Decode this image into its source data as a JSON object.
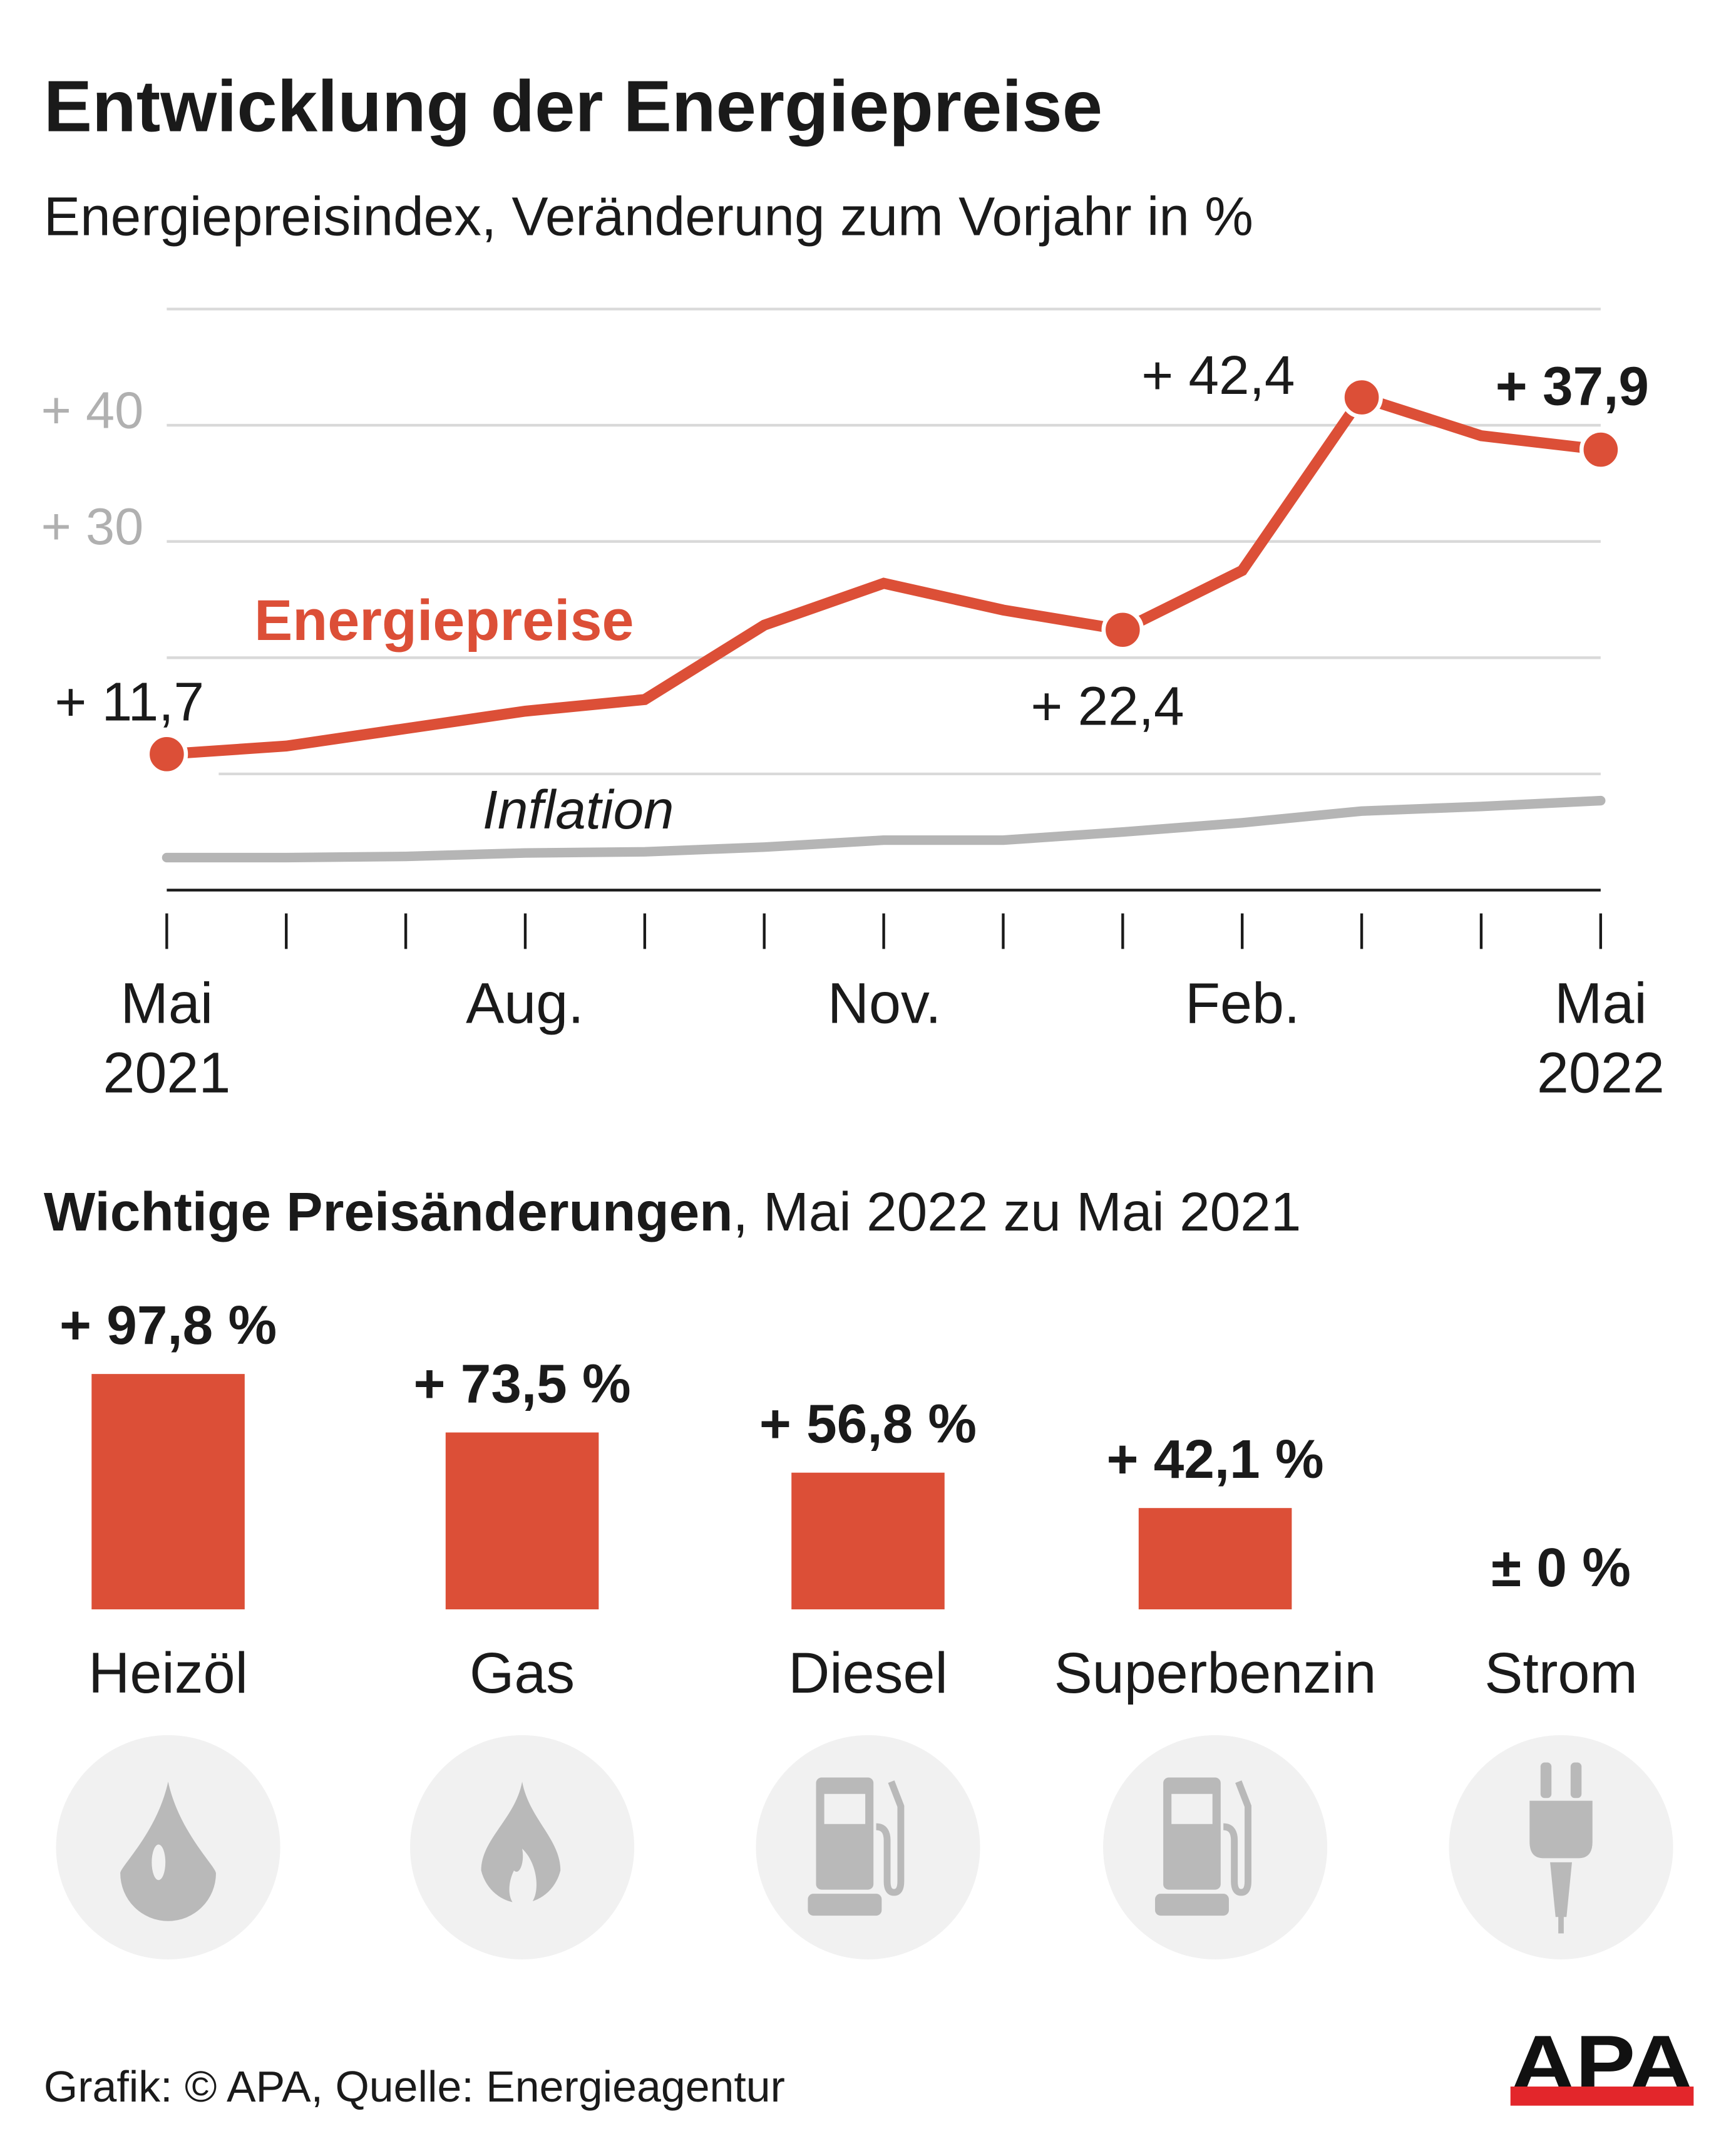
{
  "title": "Entwicklung der Energiepreise",
  "subtitle": "Energiepreisindex, Veränderung zum Vorjahr in %",
  "colors": {
    "energy": "#dc4f37",
    "inflation": "#b5b5b5",
    "grid": "#d9d9d9",
    "icon_bg": "#f1f1f1",
    "icon_fg": "#b9b9b9",
    "logo_red": "#e3262b"
  },
  "chart_data": [
    {
      "type": "line",
      "title": "Entwicklung der Energiepreise",
      "subtitle": "Energiepreisindex, Veränderung zum Vorjahr in %",
      "x": [
        "2021-05",
        "2021-06",
        "2021-07",
        "2021-08",
        "2021-09",
        "2021-10",
        "2021-11",
        "2021-12",
        "2022-01",
        "2022-02",
        "2022-03",
        "2022-04",
        "2022-05"
      ],
      "x_tick_labels": [
        {
          "month": "Mai",
          "year": "2021",
          "x": "2021-05"
        },
        {
          "month": "Aug.",
          "year": "",
          "x": "2021-08"
        },
        {
          "month": "Nov.",
          "year": "",
          "x": "2021-11"
        },
        {
          "month": "Feb.",
          "year": "",
          "x": "2022-02"
        },
        {
          "month": "Mai",
          "year": "2022",
          "x": "2022-05"
        }
      ],
      "y_tick_labels": [
        {
          "label": "+ 40",
          "value": 40
        },
        {
          "label": "+ 30",
          "value": 30
        }
      ],
      "gridlines": [
        0,
        10,
        20,
        30,
        40,
        50
      ],
      "ylim": [
        0,
        50
      ],
      "series": [
        {
          "name": "Energiepreise",
          "values": [
            11.7,
            12.4,
            13.9,
            15.4,
            16.4,
            22.8,
            26.4,
            24.1,
            22.4,
            27.5,
            42.4,
            39.1,
            37.9
          ]
        },
        {
          "name": "Inflation",
          "values": [
            2.8,
            2.8,
            2.9,
            3.2,
            3.3,
            3.7,
            4.3,
            4.3,
            5.0,
            5.8,
            6.8,
            7.2,
            7.7
          ]
        }
      ],
      "annotations": [
        {
          "label": "+ 11,7",
          "index": 0,
          "bold": false
        },
        {
          "label": "+ 22,4",
          "index": 8,
          "bold": false
        },
        {
          "label": "+ 42,4",
          "index": 10,
          "bold": false
        },
        {
          "label": "+ 37,9",
          "index": 12,
          "bold": true
        }
      ]
    },
    {
      "type": "bar",
      "title_bold": "Wichtige Preisänderungen",
      "title_rest": ", Mai 2022 zu Mai 2021",
      "categories": [
        "Heizöl",
        "Gas",
        "Diesel",
        "Superbenzin",
        "Strom"
      ],
      "values": [
        97.8,
        73.5,
        56.8,
        42.1,
        0
      ],
      "value_labels": [
        "+ 97,8 %",
        "+ 73,5 %",
        "+ 56,8 %",
        "+ 42,1 %",
        "± 0 %"
      ],
      "icons": [
        "oil-drop-icon",
        "gas-flame-icon",
        "fuel-pump-icon",
        "fuel-pump-icon",
        "power-plug-icon"
      ]
    }
  ],
  "footer": {
    "credit": "Grafik: © APA, Quelle: Energieagentur",
    "logo": "APA"
  }
}
